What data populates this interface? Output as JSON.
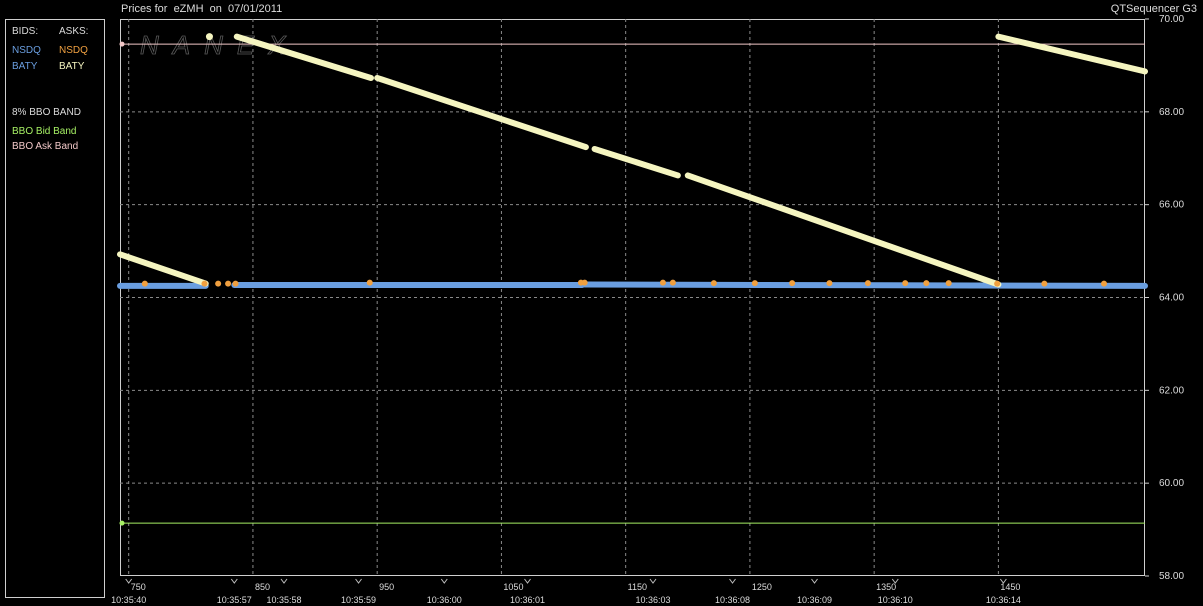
{
  "header": {
    "title": "Prices for  eZMH  on  07/01/2011",
    "app": "QTSequencer G3",
    "watermark": "NANEX"
  },
  "legend": {
    "bids_label": "BIDS:",
    "asks_label": "ASKS:",
    "bid_nsdq": "NSDQ",
    "ask_nsdq": "NSDQ",
    "bid_baty": "BATY",
    "ask_baty": "BATY",
    "band_title": "8% BBO BAND",
    "bid_band": "BBO Bid Band",
    "ask_band": "BBO Ask Band",
    "colors": {
      "nsdq_bid": "#6a9ee0",
      "nsdq_ask": "#f0a040",
      "baty_bid": "#6a9ee0",
      "baty_ask": "#f5f5c0",
      "bid_band": "#a6f064",
      "ask_band": "#f2c8c8",
      "header_text": "#dcdcdc"
    }
  },
  "chart_data": {
    "type": "scatter",
    "title": "Prices for  eZMH  on  07/01/2011",
    "ylim": [
      58,
      70
    ],
    "xlim": [
      743,
      1568
    ],
    "y_ticks": [
      "70.00",
      "68.00",
      "66.00",
      "64.00",
      "62.00",
      "60.00",
      "58.00"
    ],
    "x_ticks": [
      "750",
      "850",
      "950",
      "1050",
      "1150",
      "1250",
      "1350",
      "1450"
    ],
    "time_labels": [
      {
        "x": 750,
        "label": "10:35:40"
      },
      {
        "x": 835,
        "label": "10:35:57"
      },
      {
        "x": 875,
        "label": "10:35:58"
      },
      {
        "x": 935,
        "label": "10:35:59"
      },
      {
        "x": 1004,
        "label": "10:36:00"
      },
      {
        "x": 1071,
        "label": "10:36:01"
      },
      {
        "x": 1172,
        "label": "10:36:03"
      },
      {
        "x": 1236,
        "label": "10:36:08"
      },
      {
        "x": 1302,
        "label": "10:36:09"
      },
      {
        "x": 1367,
        "label": "10:36:10"
      },
      {
        "x": 1454,
        "label": "10:36:14"
      }
    ],
    "grid": true,
    "series": [
      {
        "name": "BATY",
        "side": "ask",
        "segments": [
          [
            [
              743,
              64.93
            ],
            [
              812,
              64.3
            ]
          ],
          [
            [
              837,
              69.62
            ],
            [
              945,
              68.73
            ]
          ],
          [
            [
              950,
              68.73
            ],
            [
              1118,
              67.24
            ]
          ],
          [
            [
              1125,
              67.2
            ],
            [
              1192,
              66.63
            ]
          ],
          [
            [
              1200,
              66.63
            ],
            [
              1450,
              64.28
            ]
          ],
          [
            [
              1450,
              69.62
            ],
            [
              1568,
              68.87
            ]
          ]
        ],
        "points": [
          [
            815,
            69.62
          ]
        ]
      },
      {
        "name": "NSDQ",
        "side": "bid",
        "segments": [
          [
            [
              743,
              64.25
            ],
            [
              812,
              64.25
            ]
          ],
          [
            [
              835,
              64.27
            ],
            [
              1115,
              64.27
            ]
          ],
          [
            [
              1117,
              64.28
            ],
            [
              1568,
              64.25
            ]
          ]
        ],
        "points": []
      },
      {
        "name": "NSDQ",
        "side": "ask",
        "segments": [],
        "points": [
          [
            763,
            64.3
          ],
          [
            811,
            64.3
          ],
          [
            822,
            64.3
          ],
          [
            830,
            64.3
          ],
          [
            836,
            64.3
          ],
          [
            944,
            64.32
          ],
          [
            1114,
            64.32
          ],
          [
            1117,
            64.32
          ],
          [
            1180,
            64.32
          ],
          [
            1188,
            64.32
          ],
          [
            1221,
            64.31
          ],
          [
            1254,
            64.31
          ],
          [
            1284,
            64.31
          ],
          [
            1314,
            64.31
          ],
          [
            1345,
            64.31
          ],
          [
            1375,
            64.31
          ],
          [
            1392,
            64.31
          ],
          [
            1410,
            64.31
          ],
          [
            1449,
            64.3
          ],
          [
            1487,
            64.3
          ],
          [
            1535,
            64.3
          ]
        ]
      },
      {
        "name": "BBO Bid Band",
        "side": "band",
        "segments": [
          [
            [
              743,
              59.14
            ],
            [
              1568,
              59.14
            ]
          ]
        ],
        "points": []
      },
      {
        "name": "BBO Ask Band",
        "side": "band",
        "segments": [
          [
            [
              743,
              69.46
            ],
            [
              1568,
              69.46
            ]
          ]
        ],
        "points": []
      }
    ]
  }
}
